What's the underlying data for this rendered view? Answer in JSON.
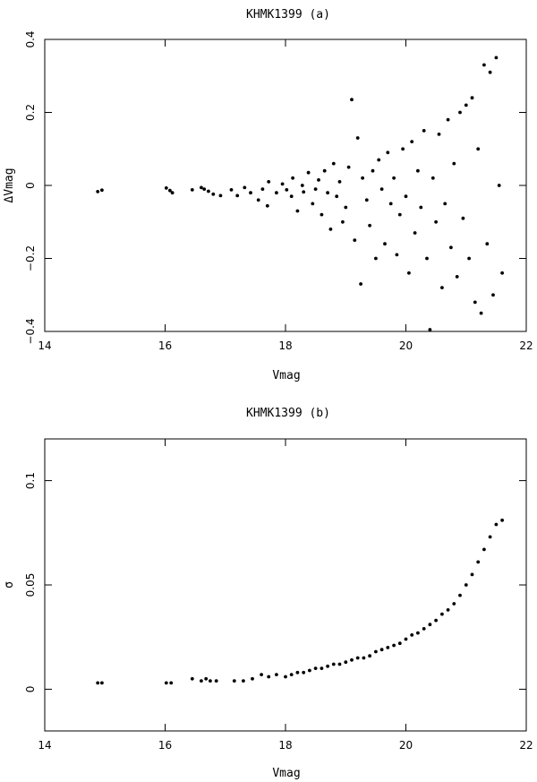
{
  "chart_data": [
    {
      "id": "a",
      "type": "scatter",
      "title": "KHMK1399  (a)",
      "xlabel": "Vmag",
      "ylabel": "ΔVmag",
      "xlim": [
        14,
        22
      ],
      "ylim": [
        -0.4,
        0.4
      ],
      "xticks": [
        14,
        16,
        18,
        20,
        22
      ],
      "xtick_labels": [
        "14",
        "16",
        "18",
        "20",
        "22"
      ],
      "yticks": [
        -0.4,
        -0.2,
        0,
        0.2,
        0.4
      ],
      "ytick_labels": [
        "−0.4",
        "−0.2",
        "0",
        "0.2",
        "0.4"
      ],
      "grid": false,
      "legend": "none",
      "point_color": "#000000",
      "series": [
        {
          "points": [
            [
              14.88,
              -0.017
            ],
            [
              14.95,
              -0.013
            ],
            [
              16.02,
              -0.007
            ],
            [
              16.08,
              -0.014
            ],
            [
              16.12,
              -0.02
            ],
            [
              16.45,
              -0.012
            ],
            [
              16.6,
              -0.006
            ],
            [
              16.65,
              -0.01
            ],
            [
              16.72,
              -0.016
            ],
            [
              16.8,
              -0.024
            ],
            [
              16.92,
              -0.028
            ],
            [
              17.1,
              -0.012
            ],
            [
              17.2,
              -0.028
            ],
            [
              17.32,
              -0.006
            ],
            [
              17.42,
              -0.02
            ],
            [
              17.55,
              -0.04
            ],
            [
              17.62,
              -0.01
            ],
            [
              17.7,
              -0.056
            ],
            [
              17.72,
              0.01
            ],
            [
              17.85,
              -0.02
            ],
            [
              17.95,
              0.004
            ],
            [
              18.02,
              -0.012
            ],
            [
              18.1,
              -0.03
            ],
            [
              18.12,
              0.02
            ],
            [
              18.2,
              -0.07
            ],
            [
              18.28,
              0.0
            ],
            [
              18.3,
              -0.018
            ],
            [
              18.38,
              0.035
            ],
            [
              18.45,
              -0.05
            ],
            [
              18.5,
              -0.01
            ],
            [
              18.55,
              0.015
            ],
            [
              18.6,
              -0.08
            ],
            [
              18.65,
              0.04
            ],
            [
              18.7,
              -0.02
            ],
            [
              18.75,
              -0.12
            ],
            [
              18.8,
              0.06
            ],
            [
              18.85,
              -0.03
            ],
            [
              18.9,
              0.01
            ],
            [
              18.95,
              -0.1
            ],
            [
              19.0,
              -0.06
            ],
            [
              19.05,
              0.05
            ],
            [
              19.1,
              0.235
            ],
            [
              19.15,
              -0.15
            ],
            [
              19.2,
              0.13
            ],
            [
              19.25,
              -0.27
            ],
            [
              19.28,
              0.02
            ],
            [
              19.35,
              -0.04
            ],
            [
              19.4,
              -0.11
            ],
            [
              19.45,
              0.04
            ],
            [
              19.5,
              -0.2
            ],
            [
              19.55,
              0.07
            ],
            [
              19.6,
              -0.01
            ],
            [
              19.65,
              -0.16
            ],
            [
              19.7,
              0.09
            ],
            [
              19.75,
              -0.05
            ],
            [
              19.8,
              0.02
            ],
            [
              19.85,
              -0.19
            ],
            [
              19.9,
              -0.08
            ],
            [
              19.95,
              0.1
            ],
            [
              20.0,
              -0.03
            ],
            [
              20.05,
              -0.24
            ],
            [
              20.1,
              0.12
            ],
            [
              20.15,
              -0.13
            ],
            [
              20.2,
              0.04
            ],
            [
              20.25,
              -0.06
            ],
            [
              20.3,
              0.15
            ],
            [
              20.35,
              -0.2
            ],
            [
              20.4,
              -0.395
            ],
            [
              20.45,
              0.02
            ],
            [
              20.5,
              -0.1
            ],
            [
              20.55,
              0.14
            ],
            [
              20.6,
              -0.28
            ],
            [
              20.65,
              -0.05
            ],
            [
              20.7,
              0.18
            ],
            [
              20.75,
              -0.17
            ],
            [
              20.8,
              0.06
            ],
            [
              20.85,
              -0.25
            ],
            [
              20.9,
              0.2
            ],
            [
              20.95,
              -0.09
            ],
            [
              21.0,
              0.22
            ],
            [
              21.05,
              -0.2
            ],
            [
              21.1,
              0.24
            ],
            [
              21.15,
              -0.32
            ],
            [
              21.2,
              0.1
            ],
            [
              21.25,
              -0.35
            ],
            [
              21.3,
              0.33
            ],
            [
              21.35,
              -0.16
            ],
            [
              21.4,
              0.31
            ],
            [
              21.45,
              -0.3
            ],
            [
              21.5,
              0.35
            ],
            [
              21.55,
              0.0
            ],
            [
              21.6,
              -0.24
            ]
          ]
        }
      ]
    },
    {
      "id": "b",
      "type": "scatter",
      "title": "KHMK1399  (b)",
      "xlabel": "Vmag",
      "ylabel": "σ",
      "xlim": [
        14,
        22
      ],
      "ylim": [
        -0.02,
        0.12
      ],
      "xticks": [
        14,
        16,
        18,
        20,
        22
      ],
      "xtick_labels": [
        "14",
        "16",
        "18",
        "20",
        "22"
      ],
      "yticks": [
        0,
        0.05,
        0.1
      ],
      "ytick_labels": [
        "0",
        "0.05",
        "0.1"
      ],
      "grid": false,
      "legend": "none",
      "point_color": "#000000",
      "series": [
        {
          "points": [
            [
              14.88,
              0.003
            ],
            [
              14.95,
              0.003
            ],
            [
              16.02,
              0.003
            ],
            [
              16.1,
              0.003
            ],
            [
              16.45,
              0.005
            ],
            [
              16.6,
              0.004
            ],
            [
              16.68,
              0.005
            ],
            [
              16.75,
              0.004
            ],
            [
              16.85,
              0.004
            ],
            [
              17.15,
              0.004
            ],
            [
              17.3,
              0.004
            ],
            [
              17.45,
              0.005
            ],
            [
              17.6,
              0.007
            ],
            [
              17.72,
              0.006
            ],
            [
              17.85,
              0.007
            ],
            [
              18.0,
              0.006
            ],
            [
              18.1,
              0.007
            ],
            [
              18.2,
              0.008
            ],
            [
              18.3,
              0.008
            ],
            [
              18.4,
              0.009
            ],
            [
              18.5,
              0.01
            ],
            [
              18.6,
              0.01
            ],
            [
              18.7,
              0.011
            ],
            [
              18.8,
              0.012
            ],
            [
              18.9,
              0.012
            ],
            [
              19.0,
              0.013
            ],
            [
              19.1,
              0.014
            ],
            [
              19.2,
              0.015
            ],
            [
              19.3,
              0.015
            ],
            [
              19.4,
              0.016
            ],
            [
              19.5,
              0.018
            ],
            [
              19.6,
              0.019
            ],
            [
              19.7,
              0.02
            ],
            [
              19.8,
              0.021
            ],
            [
              19.9,
              0.022
            ],
            [
              20.0,
              0.024
            ],
            [
              20.1,
              0.026
            ],
            [
              20.2,
              0.027
            ],
            [
              20.3,
              0.029
            ],
            [
              20.4,
              0.031
            ],
            [
              20.5,
              0.033
            ],
            [
              20.6,
              0.036
            ],
            [
              20.7,
              0.038
            ],
            [
              20.8,
              0.041
            ],
            [
              20.9,
              0.045
            ],
            [
              21.0,
              0.05
            ],
            [
              21.1,
              0.055
            ],
            [
              21.2,
              0.061
            ],
            [
              21.3,
              0.067
            ],
            [
              21.4,
              0.073
            ],
            [
              21.5,
              0.079
            ],
            [
              21.6,
              0.081
            ]
          ]
        }
      ]
    }
  ]
}
